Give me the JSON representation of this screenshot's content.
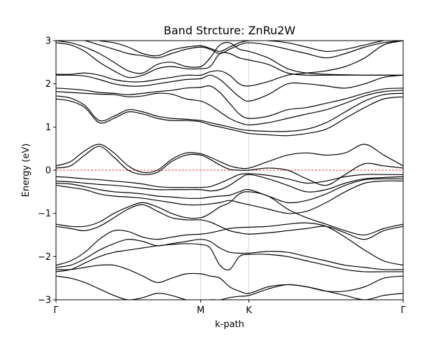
{
  "chart_data": {
    "type": "line",
    "title": "Band Strcture: ZnRu2W",
    "xlabel": "k-path",
    "ylabel": "Energy (eV)",
    "ylim": [
      -3,
      3
    ],
    "yticks": [
      -3,
      -2,
      -1,
      0,
      1,
      2,
      3
    ],
    "ytick_labels": [
      "−3",
      "−2",
      "−1",
      "0",
      "1",
      "2",
      "3"
    ],
    "xlim": [
      0,
      1
    ],
    "kpoints": [
      {
        "label": "Γ",
        "x": 0.0
      },
      {
        "label": "M",
        "x": 0.4167
      },
      {
        "label": "K",
        "x": 0.5556
      },
      {
        "label": "Γ",
        "x": 1.0
      }
    ],
    "fermi_level": 0,
    "fermi_color": "#e8000b",
    "band_color": "#000000",
    "grid": "vertical lines at high-symmetry points",
    "x": [
      0.0,
      0.042,
      0.083,
      0.125,
      0.167,
      0.208,
      0.25,
      0.292,
      0.333,
      0.375,
      0.417,
      0.444,
      0.472,
      0.5,
      0.528,
      0.556,
      0.611,
      0.667,
      0.722,
      0.778,
      0.833,
      0.889,
      0.944,
      1.0
    ],
    "series": [
      {
        "values": [
          -2.45,
          -2.5,
          -2.6,
          -2.75,
          -2.9,
          -3.0,
          -2.95,
          -2.85,
          -2.9,
          -3.0,
          -3.05,
          -3.0,
          -3.0,
          -2.95,
          -2.92,
          -2.9,
          -2.75,
          -2.65,
          -2.7,
          -2.8,
          -2.9,
          -3.0,
          -2.9,
          -2.85
        ]
      },
      {
        "values": [
          -2.3,
          -2.3,
          -2.25,
          -2.2,
          -2.2,
          -2.3,
          -2.45,
          -2.6,
          -2.5,
          -2.4,
          -2.4,
          -2.45,
          -2.5,
          -2.7,
          -2.8,
          -2.85,
          -2.7,
          -2.65,
          -2.7,
          -2.8,
          -2.8,
          -2.7,
          -2.5,
          -2.45
        ]
      },
      {
        "values": [
          -2.35,
          -2.3,
          -2.15,
          -2.0,
          -1.9,
          -1.85,
          -1.8,
          -1.75,
          -1.72,
          -1.7,
          -1.72,
          -1.8,
          -2.2,
          -2.3,
          -2.0,
          -1.95,
          -1.95,
          -2.0,
          -2.1,
          -2.2,
          -2.3,
          -2.35,
          -2.35,
          -2.35
        ]
      },
      {
        "values": [
          -2.25,
          -2.2,
          -2.05,
          -1.85,
          -1.7,
          -1.6,
          -1.65,
          -1.75,
          -1.7,
          -1.65,
          -1.6,
          -1.65,
          -1.8,
          -1.9,
          -1.92,
          -1.92,
          -1.88,
          -1.9,
          -2.0,
          -2.1,
          -2.2,
          -2.25,
          -2.3,
          -2.3
        ]
      },
      {
        "values": [
          -2.2,
          -2.1,
          -1.9,
          -1.6,
          -1.4,
          -1.42,
          -1.55,
          -1.6,
          -1.55,
          -1.5,
          -1.48,
          -1.45,
          -1.4,
          -1.35,
          -1.33,
          -1.32,
          -1.3,
          -1.25,
          -1.22,
          -1.3,
          -1.55,
          -1.85,
          -2.1,
          -2.2
        ]
      },
      {
        "values": [
          -1.3,
          -1.35,
          -1.4,
          -1.3,
          -1.1,
          -0.9,
          -0.8,
          -0.95,
          -1.1,
          -1.15,
          -1.15,
          -1.2,
          -1.3,
          -1.4,
          -1.45,
          -1.48,
          -1.45,
          -1.4,
          -1.35,
          -1.3,
          -1.45,
          -1.6,
          -1.4,
          -1.3
        ]
      },
      {
        "values": [
          -1.25,
          -1.3,
          -1.3,
          -1.2,
          -1.0,
          -0.85,
          -0.75,
          -0.85,
          -1.0,
          -1.1,
          -1.1,
          -1.0,
          -0.85,
          -0.75,
          -0.55,
          -0.5,
          -0.6,
          -0.9,
          -1.1,
          -1.25,
          -1.4,
          -1.5,
          -1.35,
          -1.25
        ]
      },
      {
        "values": [
          -0.35,
          -0.4,
          -0.45,
          -0.55,
          -0.6,
          -0.62,
          -0.65,
          -0.7,
          -0.75,
          -0.8,
          -0.8,
          -0.78,
          -0.75,
          -0.7,
          -0.75,
          -0.8,
          -0.9,
          -1.0,
          -0.95,
          -0.75,
          -0.5,
          -0.3,
          -0.25,
          -0.25
        ]
      },
      {
        "values": [
          -0.3,
          -0.32,
          -0.38,
          -0.45,
          -0.5,
          -0.52,
          -0.55,
          -0.6,
          -0.62,
          -0.65,
          -0.65,
          -0.62,
          -0.6,
          -0.58,
          -0.5,
          -0.45,
          -0.6,
          -0.75,
          -0.7,
          -0.55,
          -0.35,
          -0.22,
          -0.2,
          -0.2
        ]
      },
      {
        "values": [
          -0.25,
          -0.27,
          -0.3,
          -0.33,
          -0.35,
          -0.38,
          -0.42,
          -0.45,
          -0.45,
          -0.45,
          -0.45,
          -0.48,
          -0.45,
          -0.35,
          -0.2,
          -0.1,
          -0.2,
          -0.35,
          -0.5,
          -0.45,
          -0.3,
          -0.2,
          -0.17,
          -0.15
        ]
      },
      {
        "values": [
          -0.15,
          -0.17,
          -0.2,
          -0.22,
          -0.25,
          -0.28,
          -0.32,
          -0.38,
          -0.4,
          -0.4,
          -0.4,
          -0.38,
          -0.3,
          -0.2,
          -0.1,
          -0.08,
          -0.12,
          -0.2,
          -0.3,
          -0.25,
          -0.15,
          -0.1,
          -0.1,
          -0.1
        ]
      },
      {
        "values": [
          0.1,
          0.2,
          0.45,
          0.6,
          0.4,
          0.1,
          -0.05,
          0.0,
          0.25,
          0.4,
          0.38,
          0.3,
          0.2,
          0.1,
          0.05,
          0.05,
          0.2,
          0.35,
          0.4,
          0.35,
          0.4,
          0.6,
          0.35,
          0.1
        ]
      },
      {
        "values": [
          0.05,
          0.1,
          0.35,
          0.55,
          0.3,
          0.0,
          -0.1,
          -0.05,
          0.2,
          0.35,
          0.35,
          0.25,
          0.12,
          0.02,
          0.0,
          0.0,
          0.05,
          0.0,
          -0.2,
          -0.35,
          -0.1,
          0.15,
          0.1,
          0.05
        ]
      },
      {
        "values": [
          1.65,
          1.6,
          1.45,
          1.1,
          1.2,
          1.35,
          1.3,
          1.2,
          1.15,
          1.15,
          1.12,
          1.05,
          1.0,
          0.95,
          0.9,
          0.85,
          0.82,
          0.8,
          0.85,
          0.95,
          1.2,
          1.45,
          1.65,
          1.7
        ]
      },
      {
        "values": [
          1.72,
          1.67,
          1.5,
          1.15,
          1.25,
          1.4,
          1.35,
          1.25,
          1.2,
          1.18,
          1.15,
          1.1,
          1.05,
          1.0,
          0.95,
          0.92,
          0.9,
          0.9,
          0.95,
          1.1,
          1.35,
          1.6,
          1.75,
          1.78
        ]
      },
      {
        "values": [
          1.82,
          1.8,
          1.78,
          1.76,
          1.75,
          1.7,
          1.72,
          1.78,
          1.76,
          1.65,
          1.6,
          1.5,
          1.35,
          1.2,
          1.1,
          1.05,
          1.1,
          1.2,
          1.3,
          1.4,
          1.55,
          1.72,
          1.82,
          1.85
        ]
      },
      {
        "values": [
          1.9,
          1.88,
          1.85,
          1.8,
          1.78,
          1.75,
          1.78,
          1.82,
          1.85,
          1.9,
          1.92,
          1.95,
          1.8,
          1.55,
          1.3,
          1.2,
          1.25,
          1.4,
          1.45,
          1.55,
          1.65,
          1.78,
          1.88,
          1.9
        ]
      },
      {
        "values": [
          2.2,
          2.2,
          2.18,
          2.1,
          2.0,
          1.95,
          1.95,
          2.0,
          2.05,
          2.1,
          2.12,
          2.2,
          2.1,
          1.9,
          1.7,
          1.6,
          1.75,
          2.0,
          2.0,
          1.95,
          1.9,
          2.0,
          2.15,
          2.2
        ]
      },
      {
        "values": [
          2.22,
          2.22,
          2.25,
          2.2,
          2.1,
          2.05,
          2.05,
          2.1,
          2.15,
          2.2,
          2.2,
          2.28,
          2.3,
          2.2,
          2.0,
          1.95,
          2.05,
          2.2,
          2.25,
          2.3,
          2.4,
          2.6,
          2.9,
          3.0
        ]
      },
      {
        "values": [
          2.95,
          2.9,
          2.75,
          2.5,
          2.3,
          2.15,
          2.2,
          2.35,
          2.4,
          2.35,
          2.35,
          2.4,
          2.7,
          2.7,
          2.6,
          2.55,
          2.45,
          2.25,
          2.2,
          2.2,
          2.2,
          2.2,
          2.2,
          2.2
        ]
      },
      {
        "values": [
          3.0,
          2.95,
          2.85,
          2.7,
          2.5,
          2.3,
          2.25,
          2.45,
          2.5,
          2.4,
          2.4,
          2.6,
          2.9,
          2.95,
          2.8,
          2.75,
          2.6,
          2.35,
          2.25,
          2.22,
          2.21,
          2.2,
          2.2,
          2.2
        ]
      },
      {
        "values": [
          3.1,
          3.05,
          3.0,
          2.9,
          2.8,
          2.7,
          2.65,
          2.6,
          2.7,
          2.8,
          2.85,
          2.8,
          2.7,
          2.8,
          2.9,
          2.95,
          2.9,
          2.8,
          2.7,
          2.6,
          2.7,
          2.85,
          2.95,
          3.0
        ]
      },
      {
        "values": [
          3.2,
          3.15,
          3.1,
          3.0,
          2.95,
          2.85,
          2.7,
          2.65,
          2.78,
          2.85,
          2.88,
          2.82,
          2.75,
          2.85,
          2.95,
          3.0,
          3.0,
          2.95,
          2.85,
          2.75,
          2.8,
          2.9,
          3.0,
          3.05
        ]
      }
    ]
  }
}
